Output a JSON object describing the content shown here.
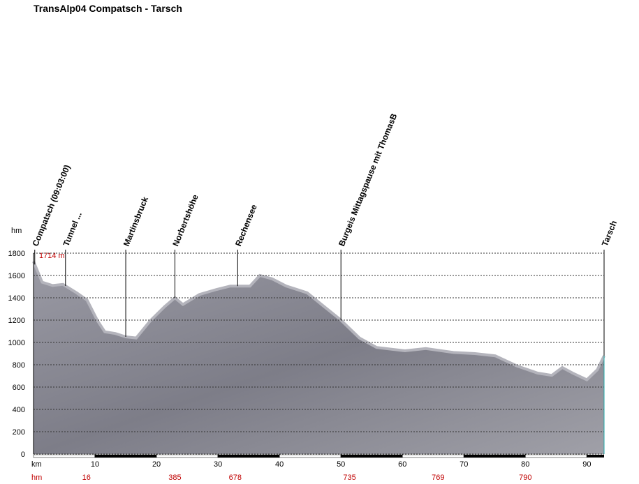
{
  "chart_data": {
    "type": "area",
    "title": "TransAlp04 Compatsch - Tarsch",
    "y_label": "hm",
    "x_label": "km",
    "climb_label": "hm",
    "max_label": "1714 m",
    "x": [
      0,
      1.4,
      3.1,
      4.8,
      7,
      8.7,
      10.4,
      11.6,
      13.3,
      15,
      16.7,
      19,
      21.3,
      23,
      24.3,
      27,
      29.8,
      32,
      35.2,
      36.8,
      38.8,
      41.1,
      44.5,
      47.3,
      49.9,
      53,
      55.8,
      60.4,
      63.8,
      68.3,
      71.8,
      75.1,
      78.6,
      82,
      84.3,
      86,
      87.7,
      90,
      91.7,
      92.8
    ],
    "values": [
      1725,
      1540,
      1510,
      1520,
      1445,
      1380,
      1195,
      1095,
      1080,
      1050,
      1040,
      1195,
      1320,
      1400,
      1340,
      1430,
      1475,
      1505,
      1505,
      1600,
      1570,
      1505,
      1445,
      1320,
      1205,
      1040,
      955,
      925,
      945,
      910,
      900,
      880,
      790,
      725,
      705,
      775,
      725,
      665,
      755,
      880
    ],
    "color": "#8c8c96",
    "xlim": [
      0,
      92.8
    ],
    "ylim": [
      0,
      1800
    ],
    "xticks": [
      10,
      20,
      30,
      40,
      50,
      60,
      70,
      80,
      90
    ],
    "yticks": [
      0,
      200,
      400,
      600,
      800,
      1000,
      1200,
      1400,
      1600,
      1800
    ],
    "grid": true,
    "waypoints": [
      {
        "name": "Compatsch (09:03:00)",
        "x": 0.2
      },
      {
        "name": "Tunnel ...",
        "x": 5.2
      },
      {
        "name": "Martinsbruck",
        "x": 15
      },
      {
        "name": "Norbertshöhe",
        "x": 23
      },
      {
        "name": "Rechensee",
        "x": 33.2
      },
      {
        "name": "Burgeis Mittagspause mit ThomasB",
        "x": 50
      },
      {
        "name": "Tarsch",
        "x": 92.8
      }
    ],
    "climb": {
      "x": [
        8.6,
        23,
        32.8,
        51.4,
        65.8,
        80
      ],
      "values": [
        16,
        385,
        678,
        735,
        769,
        790
      ]
    }
  }
}
